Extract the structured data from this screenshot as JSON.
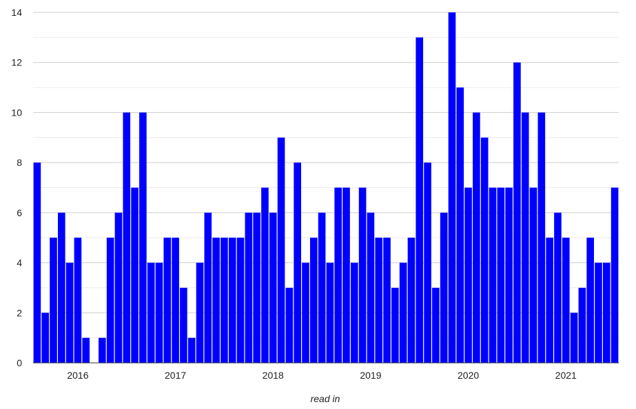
{
  "chart_data": {
    "type": "bar",
    "title": "",
    "xlabel": "read in",
    "ylabel": "",
    "ylim": [
      0,
      14
    ],
    "yticks": [
      0,
      2,
      4,
      6,
      8,
      10,
      12,
      14
    ],
    "ytick_labels": [
      "0",
      "2",
      "4",
      "6",
      "8",
      "10",
      "12",
      "14"
    ],
    "grid": true,
    "legend": "none",
    "bar_color": "#0000ff",
    "x_start": "2015-08",
    "x": [
      "2015-08",
      "2015-09",
      "2015-10",
      "2015-11",
      "2015-12",
      "2016-01",
      "2016-02",
      "2016-03",
      "2016-04",
      "2016-05",
      "2016-06",
      "2016-07",
      "2016-08",
      "2016-09",
      "2016-10",
      "2016-11",
      "2016-12",
      "2017-01",
      "2017-02",
      "2017-03",
      "2017-04",
      "2017-05",
      "2017-06",
      "2017-07",
      "2017-08",
      "2017-09",
      "2017-10",
      "2017-11",
      "2017-12",
      "2018-01",
      "2018-02",
      "2018-03",
      "2018-04",
      "2018-05",
      "2018-06",
      "2018-07",
      "2018-08",
      "2018-09",
      "2018-10",
      "2018-11",
      "2018-12",
      "2019-01",
      "2019-02",
      "2019-03",
      "2019-04",
      "2019-05",
      "2019-06",
      "2019-07",
      "2019-08",
      "2019-09",
      "2019-10",
      "2019-11",
      "2019-12",
      "2020-01",
      "2020-02",
      "2020-03",
      "2020-04",
      "2020-05",
      "2020-06",
      "2020-07",
      "2020-08",
      "2020-09",
      "2020-10",
      "2020-11",
      "2020-12",
      "2021-01",
      "2021-02",
      "2021-03",
      "2021-04",
      "2021-05",
      "2021-06",
      "2021-07"
    ],
    "values": [
      8,
      2,
      5,
      6,
      4,
      5,
      1,
      0,
      1,
      5,
      6,
      10,
      7,
      10,
      4,
      4,
      5,
      5,
      3,
      1,
      4,
      6,
      5,
      5,
      5,
      5,
      6,
      6,
      7,
      6,
      9,
      3,
      8,
      4,
      5,
      6,
      4,
      7,
      7,
      4,
      7,
      6,
      5,
      5,
      3,
      4,
      5,
      13,
      8,
      3,
      6,
      14,
      11,
      7,
      10,
      9,
      7,
      7,
      7,
      12,
      10,
      7,
      10,
      5,
      6,
      5,
      2,
      3,
      5,
      4,
      4,
      7
    ],
    "xtick_labels": [
      {
        "label": "2016",
        "at": "2016-01"
      },
      {
        "label": "2017",
        "at": "2017-01"
      },
      {
        "label": "2018",
        "at": "2018-01"
      },
      {
        "label": "2019",
        "at": "2019-01"
      },
      {
        "label": "2020",
        "at": "2020-01"
      },
      {
        "label": "2021",
        "at": "2021-01"
      }
    ]
  }
}
